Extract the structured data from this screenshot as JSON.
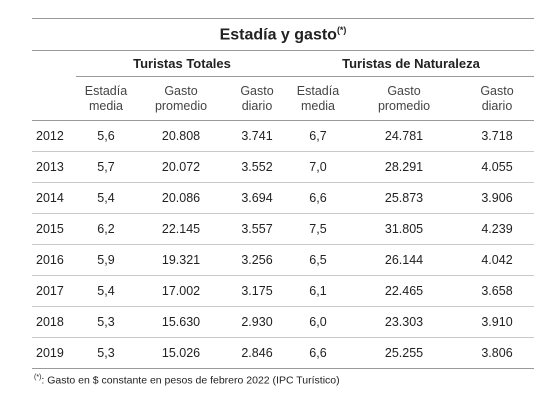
{
  "title": "Estadía y gasto",
  "title_mark": "(*)",
  "groups": [
    "Turistas Totales",
    "Turistas de Naturaleza"
  ],
  "subheaders": [
    [
      "Estadía",
      "media"
    ],
    [
      "Gasto",
      "promedio"
    ],
    [
      "Gasto",
      "diario"
    ],
    [
      "Estadía",
      "media"
    ],
    [
      "Gasto",
      "promedio"
    ],
    [
      "Gasto",
      "diario"
    ]
  ],
  "rows": [
    [
      "2012",
      "5,6",
      "20.808",
      "3.741",
      "6,7",
      "24.781",
      "3.718"
    ],
    [
      "2013",
      "5,7",
      "20.072",
      "3.552",
      "7,0",
      "28.291",
      "4.055"
    ],
    [
      "2014",
      "5,4",
      "20.086",
      "3.694",
      "6,6",
      "25.873",
      "3.906"
    ],
    [
      "2015",
      "6,2",
      "22.145",
      "3.557",
      "7,5",
      "31.805",
      "4.239"
    ],
    [
      "2016",
      "5,9",
      "19.321",
      "3.256",
      "6,5",
      "26.144",
      "4.042"
    ],
    [
      "2017",
      "5,4",
      "17.002",
      "3.175",
      "6,1",
      "22.465",
      "3.658"
    ],
    [
      "2018",
      "5,3",
      "15.630",
      "2.930",
      "6,0",
      "23.303",
      "3.910"
    ],
    [
      "2019",
      "5,3",
      "15.026",
      "2.846",
      "6,6",
      "25.255",
      "3.806"
    ]
  ],
  "footnote_mark": "(*)",
  "footnote": ": Gasto en $ constante en pesos de febrero 2022 (IPC Turístico)"
}
